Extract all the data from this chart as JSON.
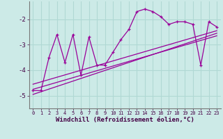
{
  "xlabel": "Windchill (Refroidissement éolien,°C)",
  "bg_color": "#cceae7",
  "line_color": "#990099",
  "grid_color": "#b0d8d4",
  "xlim": [
    -0.5,
    23.5
  ],
  "ylim": [
    -5.5,
    -1.3
  ],
  "yticks": [
    -5,
    -4,
    -3,
    -2
  ],
  "xticks": [
    0,
    1,
    2,
    3,
    4,
    5,
    6,
    7,
    8,
    9,
    10,
    11,
    12,
    13,
    14,
    15,
    16,
    17,
    18,
    19,
    20,
    21,
    22,
    23
  ],
  "hours": [
    0,
    1,
    2,
    3,
    4,
    5,
    6,
    7,
    8,
    9,
    10,
    11,
    12,
    13,
    14,
    15,
    16,
    17,
    18,
    19,
    20,
    21,
    22,
    23
  ],
  "windchill": [
    -4.8,
    -4.8,
    -3.5,
    -2.6,
    -3.7,
    -2.6,
    -4.2,
    -2.7,
    -3.8,
    -3.8,
    -3.3,
    -2.8,
    -2.4,
    -1.7,
    -1.6,
    -1.7,
    -1.9,
    -2.2,
    -2.1,
    -2.1,
    -2.2,
    -3.8,
    -2.1,
    -2.3
  ],
  "trend1_x": [
    0,
    23
  ],
  "trend1_y": [
    -4.55,
    -2.45
  ],
  "trend2_x": [
    0,
    23
  ],
  "trend2_y": [
    -4.75,
    -2.65
  ],
  "trend3_x": [
    0,
    23
  ],
  "trend3_y": [
    -4.95,
    -2.55
  ]
}
